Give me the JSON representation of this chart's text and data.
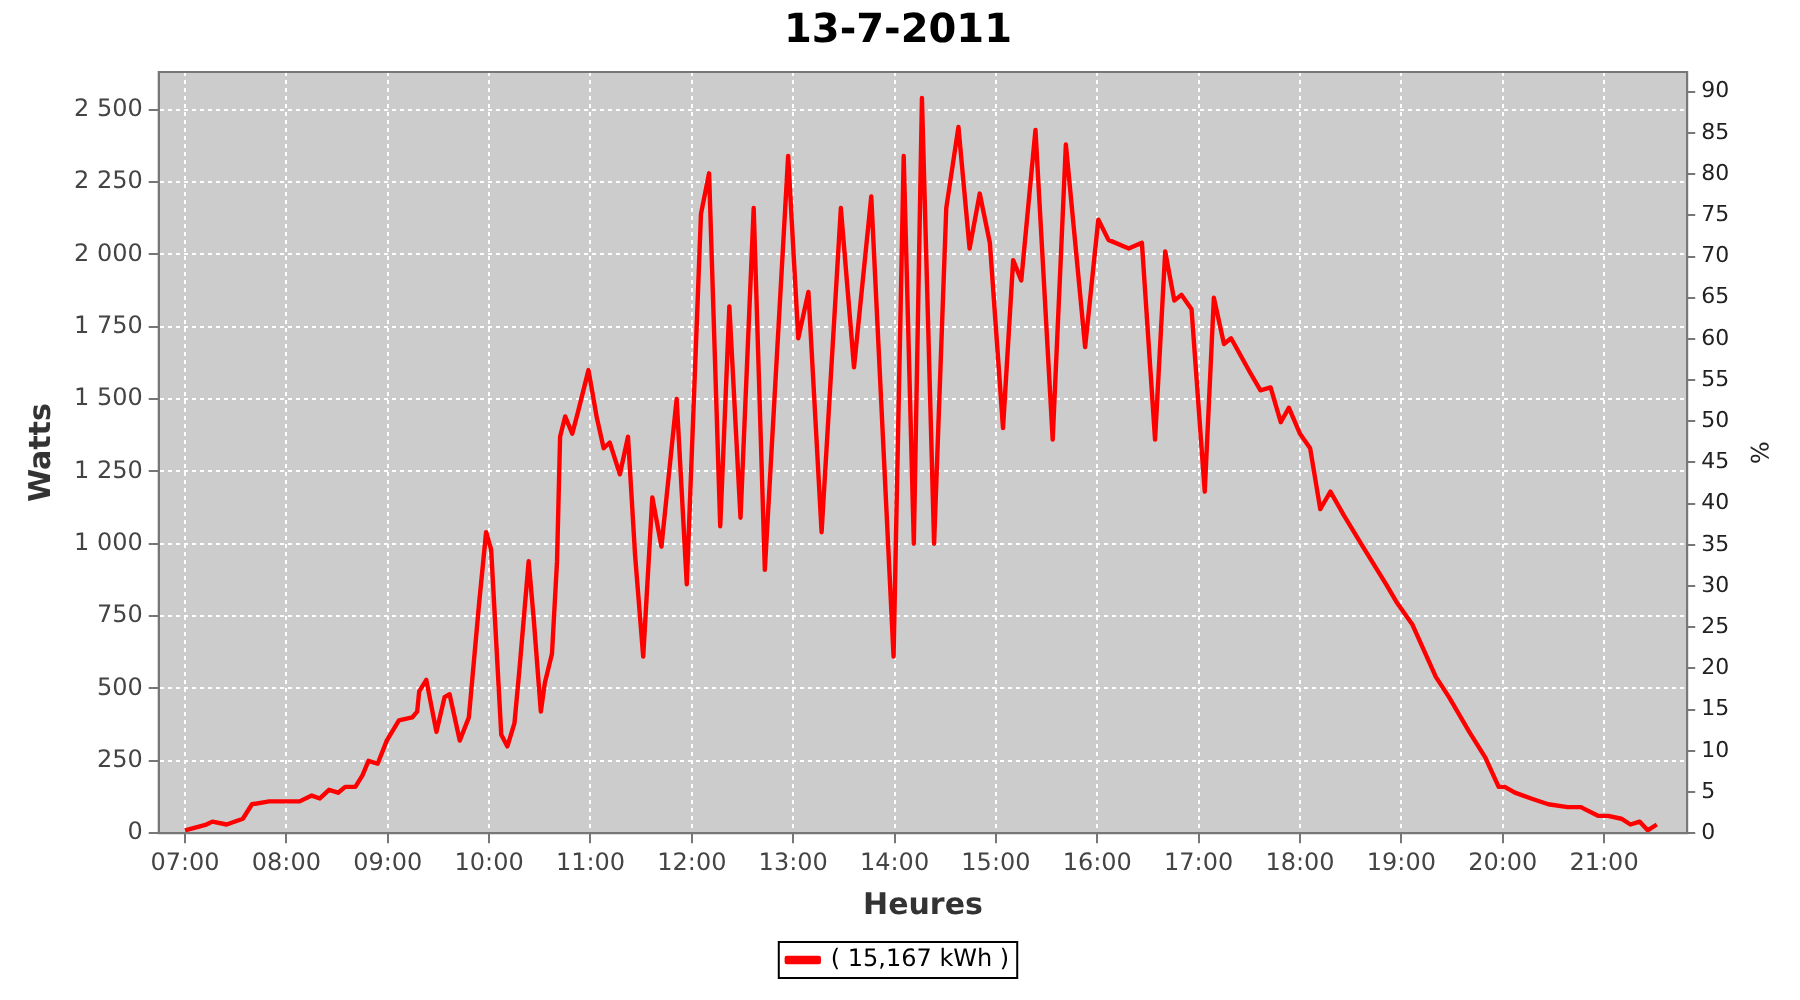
{
  "chart_data": {
    "type": "line",
    "title": "13-7-2011",
    "xlabel": "Heures",
    "ylabel": "Watts",
    "y2label": "%",
    "xlim": [
      6.74,
      21.82
    ],
    "xticks": [
      {
        "value": 7,
        "label": "07:00"
      },
      {
        "value": 8,
        "label": "08:00"
      },
      {
        "value": 9,
        "label": "09:00"
      },
      {
        "value": 10,
        "label": "10:00"
      },
      {
        "value": 11,
        "label": "11:00"
      },
      {
        "value": 12,
        "label": "12:00"
      },
      {
        "value": 13,
        "label": "13:00"
      },
      {
        "value": 14,
        "label": "14:00"
      },
      {
        "value": 15,
        "label": "15:00"
      },
      {
        "value": 16,
        "label": "16:00"
      },
      {
        "value": 17,
        "label": "17:00"
      },
      {
        "value": 18,
        "label": "18:00"
      },
      {
        "value": 19,
        "label": "19:00"
      },
      {
        "value": 20,
        "label": "20:00"
      },
      {
        "value": 21,
        "label": "21:00"
      }
    ],
    "ylim": [
      0,
      2630
    ],
    "yticks": [
      0,
      250,
      500,
      750,
      {
        "value": 1000,
        "label": "1 000"
      },
      {
        "value": 1250,
        "label": "1 250"
      },
      {
        "value": 1500,
        "label": "1 500"
      },
      {
        "value": 1750,
        "label": "1 750"
      },
      {
        "value": 2000,
        "label": "2 000"
      },
      {
        "value": 2250,
        "label": "2 250"
      },
      {
        "value": 2500,
        "label": "2 500"
      }
    ],
    "y2lim": [
      0,
      92.4
    ],
    "y2ticks": [
      0,
      5,
      10,
      15,
      20,
      25,
      30,
      35,
      40,
      45,
      50,
      55,
      60,
      65,
      70,
      75,
      80,
      85,
      90
    ],
    "grid": true,
    "legend": "bottom",
    "line_style": "solid",
    "x": [
      7.0,
      7.21,
      7.27,
      7.41,
      7.57,
      7.66,
      7.83,
      7.93,
      8.13,
      8.25,
      8.33,
      8.42,
      8.51,
      8.58,
      8.68,
      8.75,
      8.81,
      8.9,
      8.99,
      9.11,
      9.24,
      9.29,
      9.31,
      9.38,
      9.48,
      9.56,
      9.61,
      9.71,
      9.8,
      9.9,
      9.97,
      10.02,
      10.12,
      10.18,
      10.25,
      10.3,
      10.39,
      10.44,
      10.51,
      10.55,
      10.62,
      10.67,
      10.7,
      10.75,
      10.82,
      10.88,
      10.98,
      11.06,
      11.13,
      11.19,
      11.29,
      11.37,
      11.44,
      11.52,
      11.61,
      11.7,
      11.85,
      11.95,
      12.09,
      12.17,
      12.28,
      12.37,
      12.48,
      12.61,
      12.72,
      12.95,
      13.05,
      13.15,
      13.28,
      13.47,
      13.6,
      13.77,
      13.99,
      14.09,
      14.19,
      14.27,
      14.39,
      14.51,
      14.63,
      14.74,
      14.84,
      14.94,
      15.07,
      15.17,
      15.25,
      15.39,
      15.56,
      15.69,
      15.88,
      16.01,
      16.11,
      16.31,
      16.44,
      16.57,
      16.67,
      16.76,
      16.83,
      16.93,
      17.06,
      17.15,
      17.25,
      17.32,
      17.51,
      17.61,
      17.71,
      17.81,
      17.89,
      18.0,
      18.1,
      18.2,
      18.3,
      18.43,
      18.62,
      18.85,
      18.95,
      19.11,
      19.34,
      19.47,
      19.67,
      19.83,
      19.96,
      20.02,
      20.12,
      20.28,
      20.45,
      20.64,
      20.77,
      20.94,
      21.04,
      21.17,
      21.26,
      21.35,
      21.43,
      21.52
    ],
    "series": [
      {
        "name": "( 15,167 kWh )",
        "color": "#ff0000",
        "values": [
          10,
          30,
          40,
          30,
          50,
          100,
          110,
          110,
          110,
          130,
          120,
          150,
          140,
          160,
          160,
          200,
          250,
          240,
          320,
          390,
          400,
          420,
          490,
          530,
          350,
          470,
          480,
          320,
          400,
          790,
          1040,
          980,
          340,
          300,
          380,
          570,
          940,
          740,
          420,
          520,
          620,
          940,
          1370,
          1440,
          1380,
          1460,
          1600,
          1440,
          1330,
          1350,
          1240,
          1370,
          960,
          610,
          1160,
          990,
          1500,
          860,
          2140,
          2280,
          1060,
          1820,
          1090,
          2160,
          910,
          2340,
          1710,
          1870,
          1040,
          2160,
          1610,
          2200,
          610,
          2340,
          1000,
          2540,
          1000,
          2160,
          2440,
          2020,
          2210,
          2040,
          1400,
          1980,
          1910,
          2430,
          1360,
          2380,
          1680,
          2120,
          2050,
          2020,
          2040,
          1360,
          2010,
          1840,
          1860,
          1810,
          1180,
          1850,
          1690,
          1710,
          1590,
          1530,
          1540,
          1420,
          1470,
          1380,
          1330,
          1120,
          1180,
          1100,
          990,
          860,
          800,
          720,
          540,
          470,
          350,
          260,
          160,
          160,
          140,
          120,
          100,
          90,
          90,
          60,
          60,
          50,
          30,
          40,
          10,
          30
        ]
      }
    ]
  }
}
